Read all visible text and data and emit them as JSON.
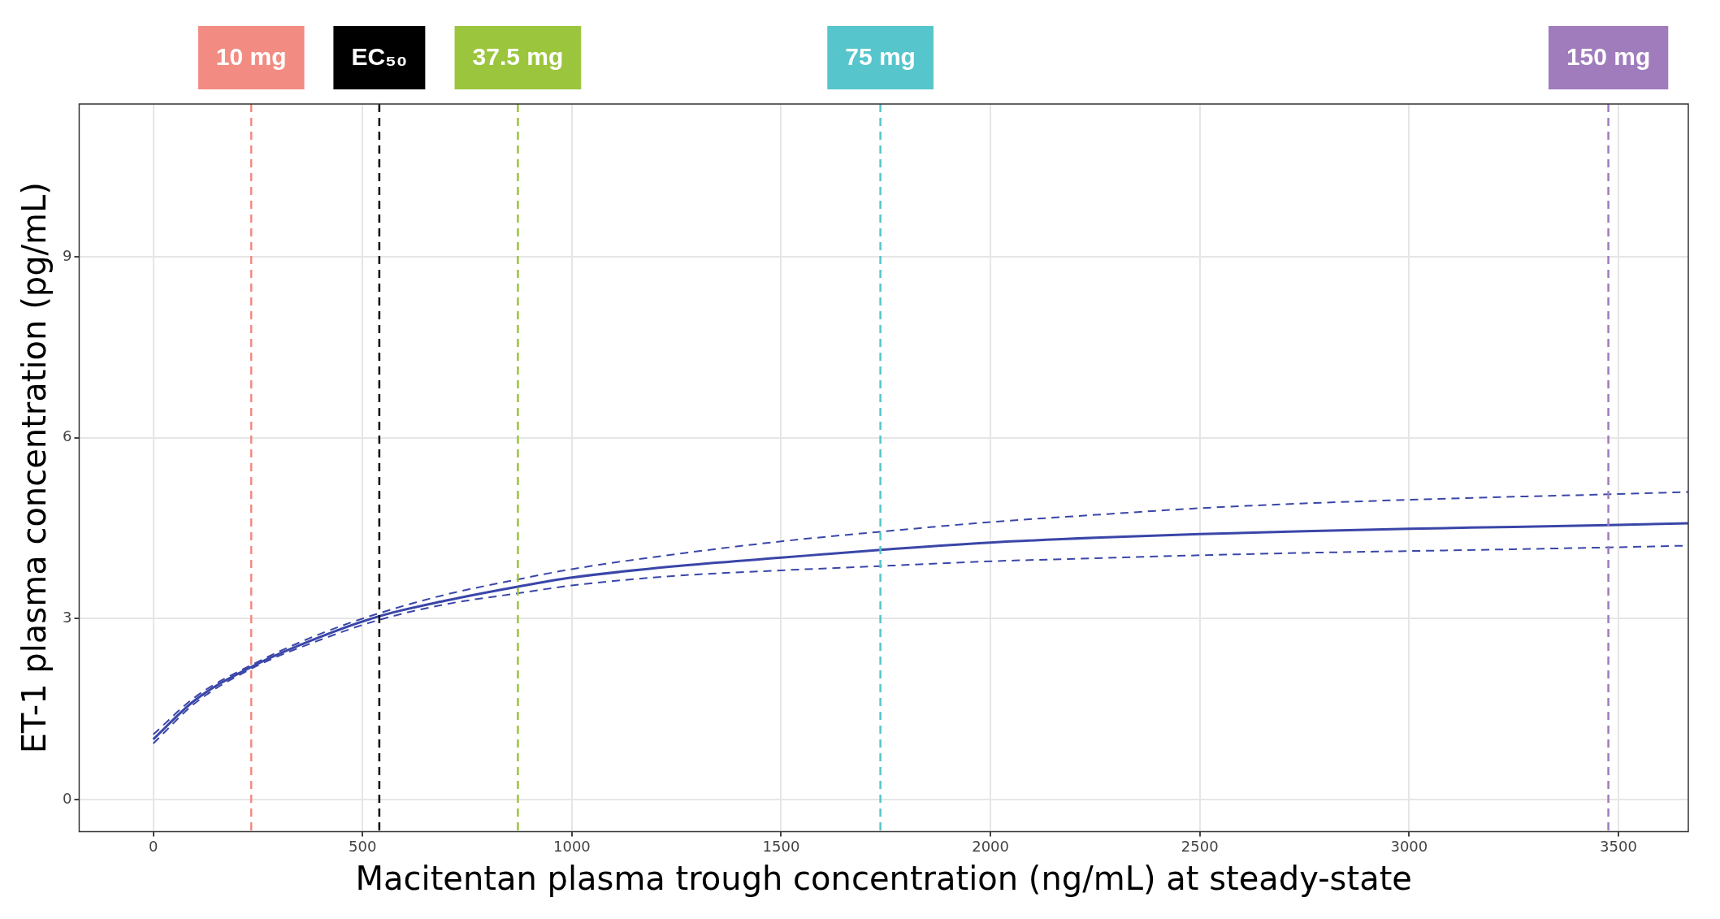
{
  "chart_data": {
    "type": "line",
    "xlabel": "Macitentan plasma trough concentration (ng/mL) at steady-state",
    "ylabel": "ET-1 plasma concentration (pg/mL)",
    "x": [
      0,
      100,
      240,
      400,
      540,
      700,
      871,
      1000,
      1250,
      1500,
      1737,
      2000,
      2250,
      2500,
      2750,
      3000,
      3250,
      3476,
      3667
    ],
    "series": [
      {
        "color": "#3a46a8",
        "line_style": "solid",
        "values": [
          1.0,
          1.65,
          2.22,
          2.7,
          3.04,
          3.3,
          3.53,
          3.68,
          3.87,
          4.01,
          4.14,
          4.26,
          4.34,
          4.4,
          4.45,
          4.49,
          4.52,
          4.55,
          4.58
        ]
      },
      {
        "color": "#3a46a8",
        "line_style": "dashed",
        "values": [
          1.08,
          1.7,
          2.25,
          2.75,
          3.09,
          3.4,
          3.65,
          3.82,
          4.07,
          4.28,
          4.44,
          4.6,
          4.72,
          4.83,
          4.91,
          4.97,
          5.02,
          5.06,
          5.1
        ]
      },
      {
        "color": "#3a46a8",
        "line_style": "dashed",
        "values": [
          0.93,
          1.6,
          2.19,
          2.65,
          2.98,
          3.24,
          3.42,
          3.55,
          3.71,
          3.8,
          3.87,
          3.95,
          4.0,
          4.05,
          4.09,
          4.12,
          4.15,
          4.18,
          4.21
        ]
      }
    ],
    "xlim": [
      -177,
      3667
    ],
    "xticks": [
      0,
      500,
      1000,
      1500,
      2000,
      2500,
      3000,
      3500
    ],
    "ylim": [
      -0.53,
      11.53
    ],
    "yticks": [
      0,
      3,
      6,
      9
    ],
    "grid": true,
    "legend": false,
    "marker": "none",
    "ref_lines": [
      {
        "axis": "x",
        "value": 234,
        "label": "10 mg",
        "color": "#f28b82",
        "line_style": "dashed"
      },
      {
        "axis": "x",
        "value": 540,
        "label": "EC₅₀",
        "color": "#000000",
        "line_style": "dashed"
      },
      {
        "axis": "x",
        "value": 871,
        "label": "37.5 mg",
        "color": "#9bc53d",
        "line_style": "dashed"
      },
      {
        "axis": "x",
        "value": 1737,
        "label": "75 mg",
        "color": "#56c5cc",
        "line_style": "dashed"
      },
      {
        "axis": "x",
        "value": 3476,
        "label": "150 mg",
        "color": "#a07cbc",
        "line_style": "dashed"
      }
    ]
  }
}
